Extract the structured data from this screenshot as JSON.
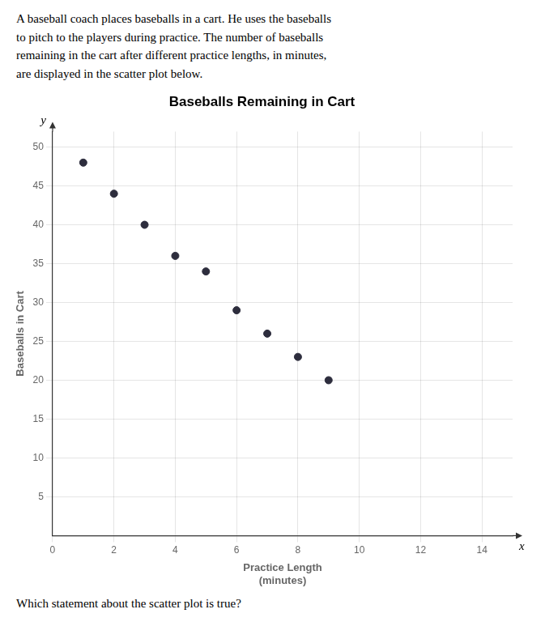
{
  "chart_data": {
    "type": "scatter",
    "title": "Baseballs Remaining in Cart",
    "subtitle": "A baseball coach places baseballs in a cart. He uses the baseballs\nto pitch to the players during practice. The number of baseballs\nremaining in the cart after different practice lengths, in minutes,\nare displayed in the scatter plot below.",
    "xlabel": "Practice Length\n(minutes)",
    "ylabel": "Baseballs in Cart",
    "annotations": [
      "x",
      "y",
      "Which statement about the scatter plot is true?"
    ],
    "x": [
      1,
      2,
      3,
      4,
      5,
      6,
      7,
      8,
      9
    ],
    "values": [
      48,
      44,
      40,
      36,
      34,
      29,
      26,
      23,
      20
    ],
    "color": "#2d2d3d",
    "xlim": [
      0,
      15
    ],
    "ylim": [
      0,
      52
    ],
    "xticks": [
      0,
      2,
      4,
      6,
      8,
      10,
      12,
      14
    ],
    "yticks": [
      5,
      10,
      15,
      20,
      25,
      30,
      35,
      40,
      45,
      50
    ],
    "grid": true
  }
}
